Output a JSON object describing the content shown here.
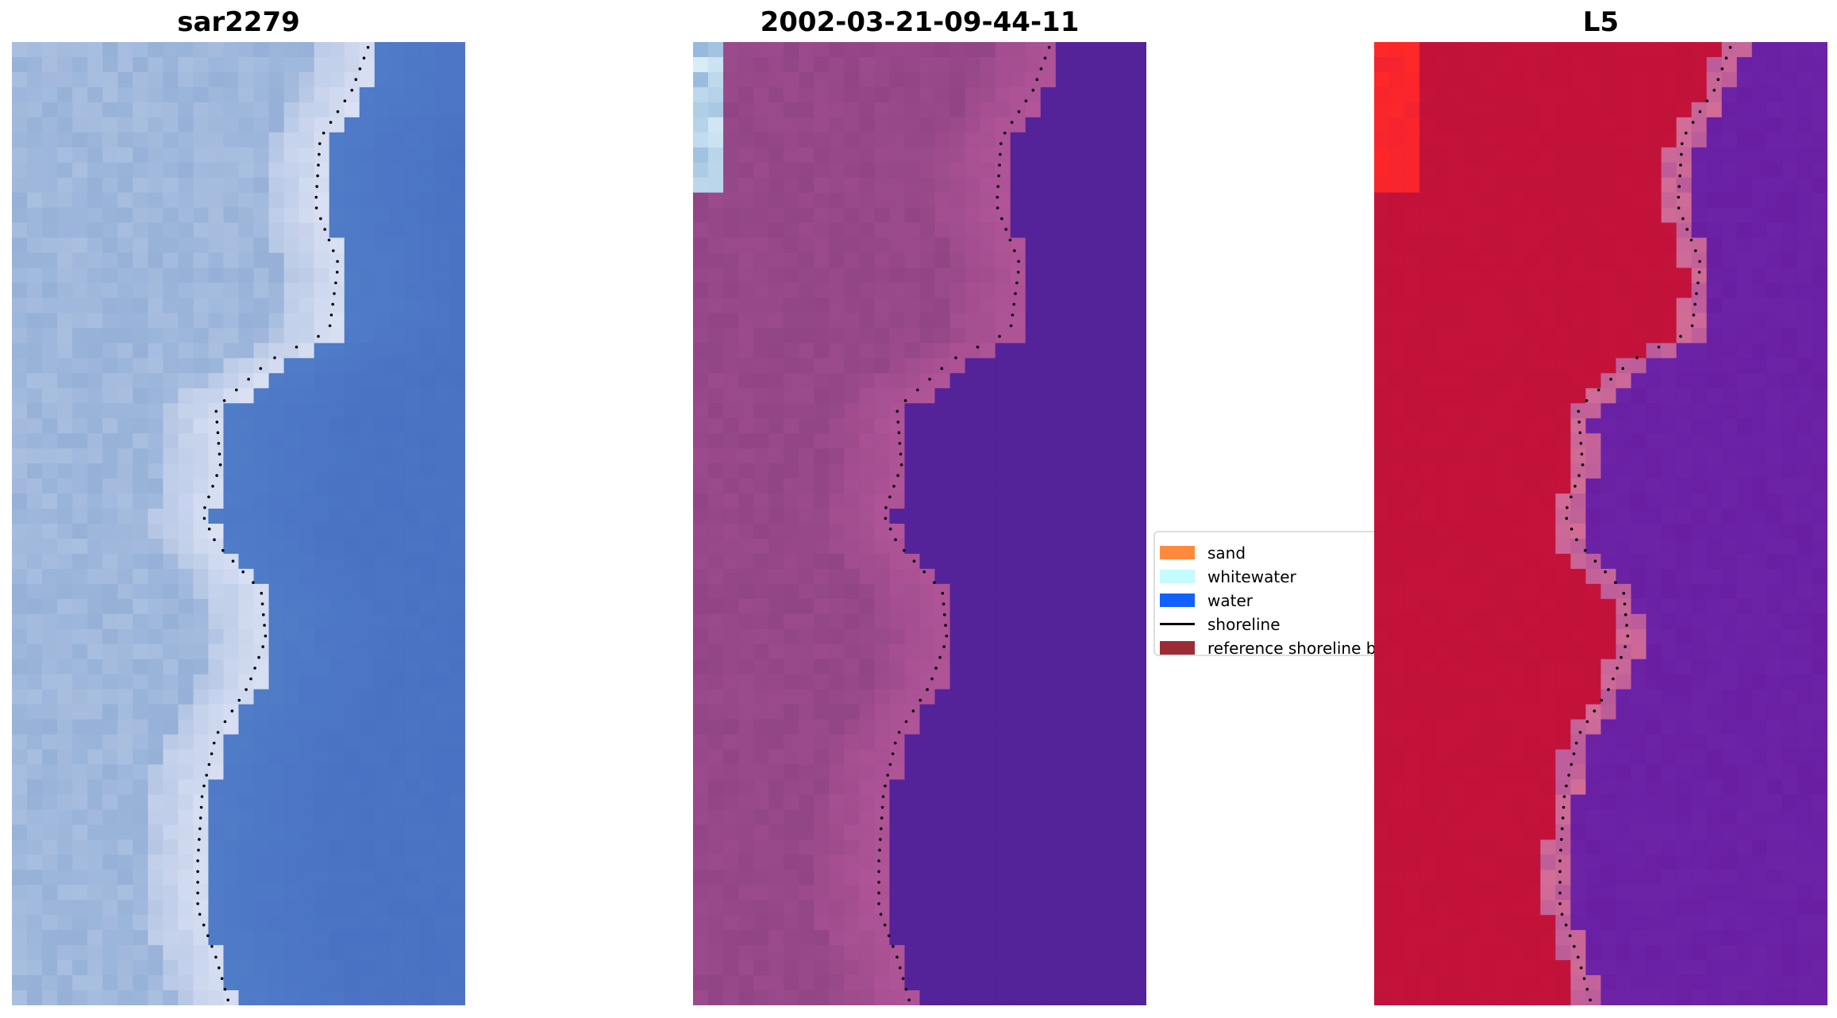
{
  "panels": [
    {
      "title": "sar2279",
      "kind": "rgb"
    },
    {
      "title": "2002-03-21-09-44-11",
      "kind": "classified"
    },
    {
      "title": "L5",
      "kind": "index"
    }
  ],
  "legend": {
    "items": [
      {
        "label": "sand",
        "color": "#ff8a3d",
        "type": "patch"
      },
      {
        "label": "whitewater",
        "color": "#c4fbff",
        "type": "patch"
      },
      {
        "label": "water",
        "color": "#1160ff",
        "type": "patch"
      },
      {
        "label": "shoreline",
        "color": "#000000",
        "type": "line"
      },
      {
        "label": "reference shoreline buffer",
        "color": "#9b2b35",
        "type": "patch"
      }
    ]
  },
  "colors": {
    "water_rgb": "#4a72c4",
    "sand_rgb": "#a9bfe0",
    "classified_water": "#542399",
    "classified_land": "#9b4b8c",
    "index_land": "#c1123a",
    "index_water": "#6a1fa3",
    "shoreline": "#000000"
  }
}
